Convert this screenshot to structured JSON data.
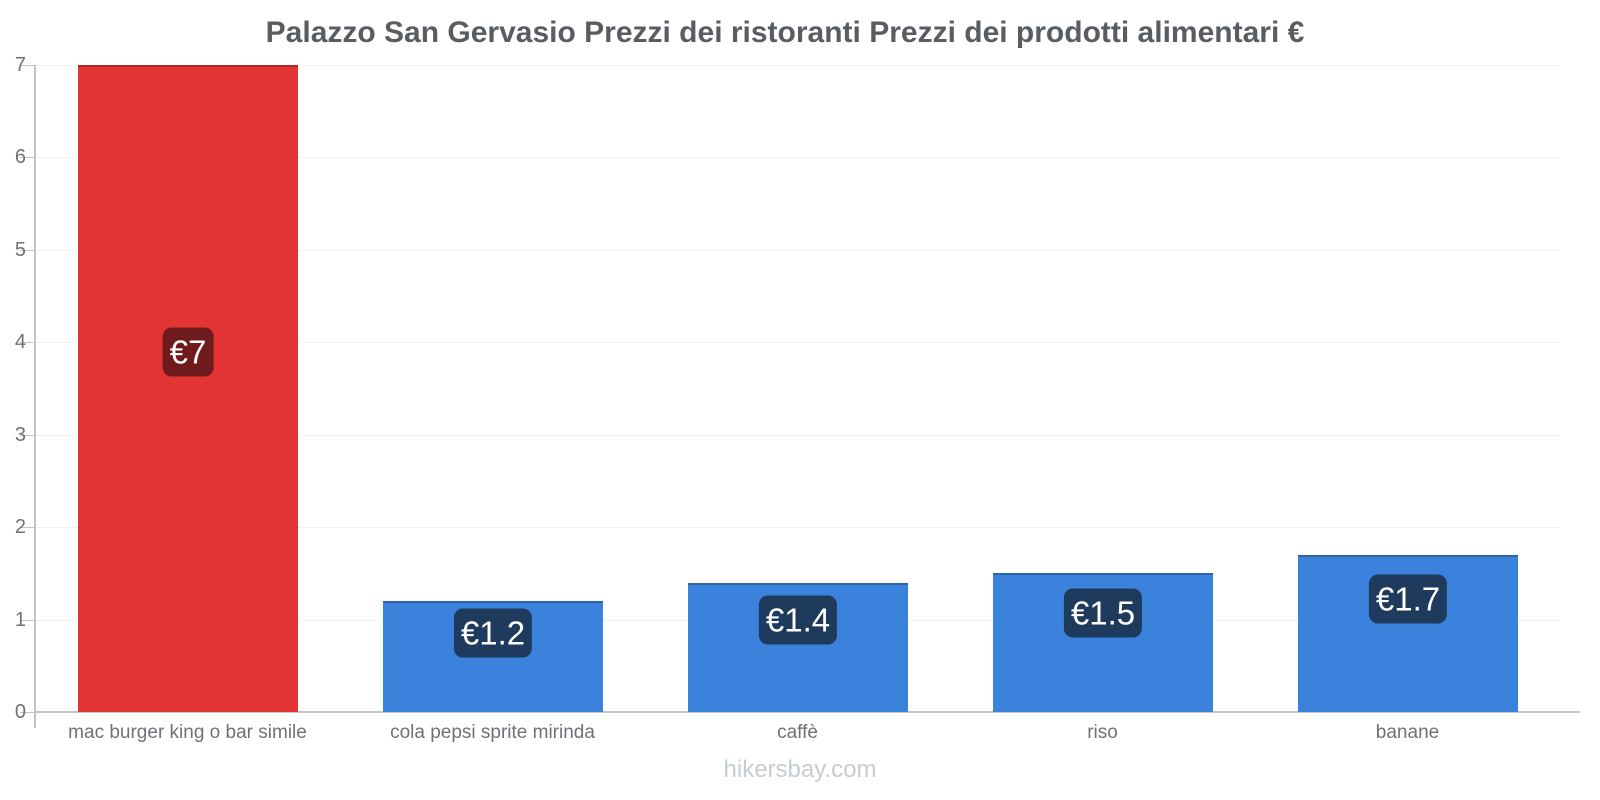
{
  "title": "Palazzo San Gervasio Prezzi dei ristoranti Prezzi dei prodotti alimentari €",
  "footer": "hikersbay.com",
  "chart_data": {
    "type": "bar",
    "title": "Palazzo San Gervasio Prezzi dei ristoranti Prezzi dei prodotti alimentari €",
    "categories": [
      "mac burger king o bar simile",
      "cola pepsi sprite mirinda",
      "caffè",
      "riso",
      "banane"
    ],
    "values": [
      7,
      1.2,
      1.4,
      1.5,
      1.7
    ],
    "data_labels": [
      "€7",
      "€1.2",
      "€1.4",
      "€1.5",
      "€1.7"
    ],
    "bar_colors": [
      "#e23434",
      "#3a82dc",
      "#3a82dc",
      "#3a82dc",
      "#3a82dc"
    ],
    "label_bg_colors": [
      "#6f1b1b",
      "#1e3b5e",
      "#1e3b5e",
      "#1e3b5e",
      "#1e3b5e"
    ],
    "xlabel": "",
    "ylabel": "",
    "ylim": [
      0,
      7
    ],
    "yticks": [
      0,
      1,
      2,
      3,
      4,
      5,
      6,
      7
    ],
    "grid": true,
    "legend": "none",
    "currency_symbol": "€",
    "source": "hikersbay.com"
  },
  "colors": {
    "red_bar": "#e23434",
    "blue_bar": "#3a82dc",
    "red_badge_bg": "#6f1b1b",
    "blue_badge_bg": "#1e3b5e",
    "title_text": "#595d61",
    "axis_text": "#6e7276",
    "axis_line": "#c4c4c4",
    "gridline": "#f3f3f3",
    "footer_text": "#c7ccd3"
  }
}
